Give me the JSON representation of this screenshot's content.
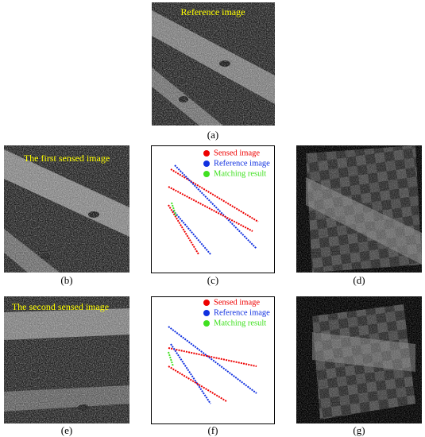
{
  "panels": [
    {
      "label": "(a)",
      "caption": "Reference image"
    },
    {
      "label": "(b)",
      "caption": "The first sensed image"
    },
    {
      "label": "(c)",
      "legend": [
        "Sensed image",
        "Reference image",
        "Matching result"
      ]
    },
    {
      "label": "(d)"
    },
    {
      "label": "(e)",
      "caption": "The second sensed image"
    },
    {
      "label": "(f)",
      "legend": [
        "Sensed image",
        "Reference image",
        "Matching result"
      ]
    },
    {
      "label": "(g)"
    }
  ]
}
